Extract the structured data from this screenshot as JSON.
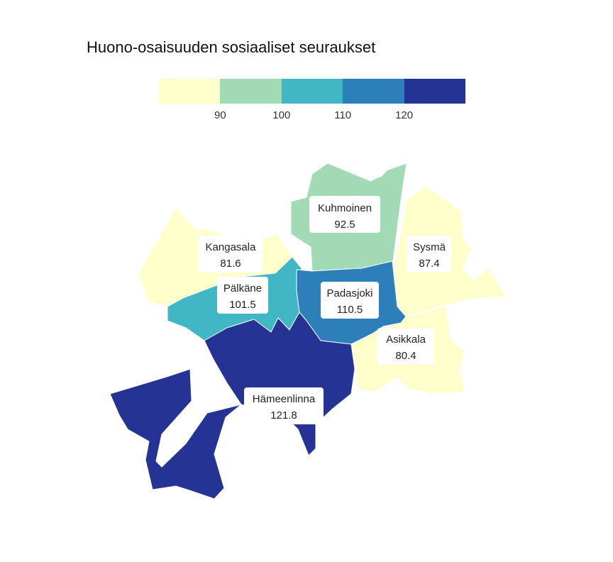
{
  "title": "Huono-osaisuuden sosiaaliset seuraukset",
  "legend": {
    "colors": [
      "#ffffcc",
      "#a1dab4",
      "#41b6c4",
      "#2c7fb8",
      "#253494"
    ],
    "ticks": [
      "90",
      "100",
      "110",
      "120"
    ]
  },
  "chart_data": {
    "type": "choropleth",
    "title": "Huono-osaisuuden sosiaaliset seuraukset",
    "bins": [
      90,
      100,
      110,
      120
    ],
    "regions": [
      {
        "name": "Kuhmoinen",
        "value": "92.5",
        "color": "#a1dab4"
      },
      {
        "name": "Kangasala",
        "value": "81.6",
        "color": "#ffffcc"
      },
      {
        "name": "Sysmä",
        "value": "87.4",
        "color": "#ffffcc"
      },
      {
        "name": "Pälkäne",
        "value": "101.5",
        "color": "#41b6c4"
      },
      {
        "name": "Padasjoki",
        "value": "110.5",
        "color": "#2c7fb8"
      },
      {
        "name": "Asikkala",
        "value": "80.4",
        "color": "#ffffcc"
      },
      {
        "name": "Hämeenlinna",
        "value": "121.8",
        "color": "#253494"
      }
    ]
  }
}
